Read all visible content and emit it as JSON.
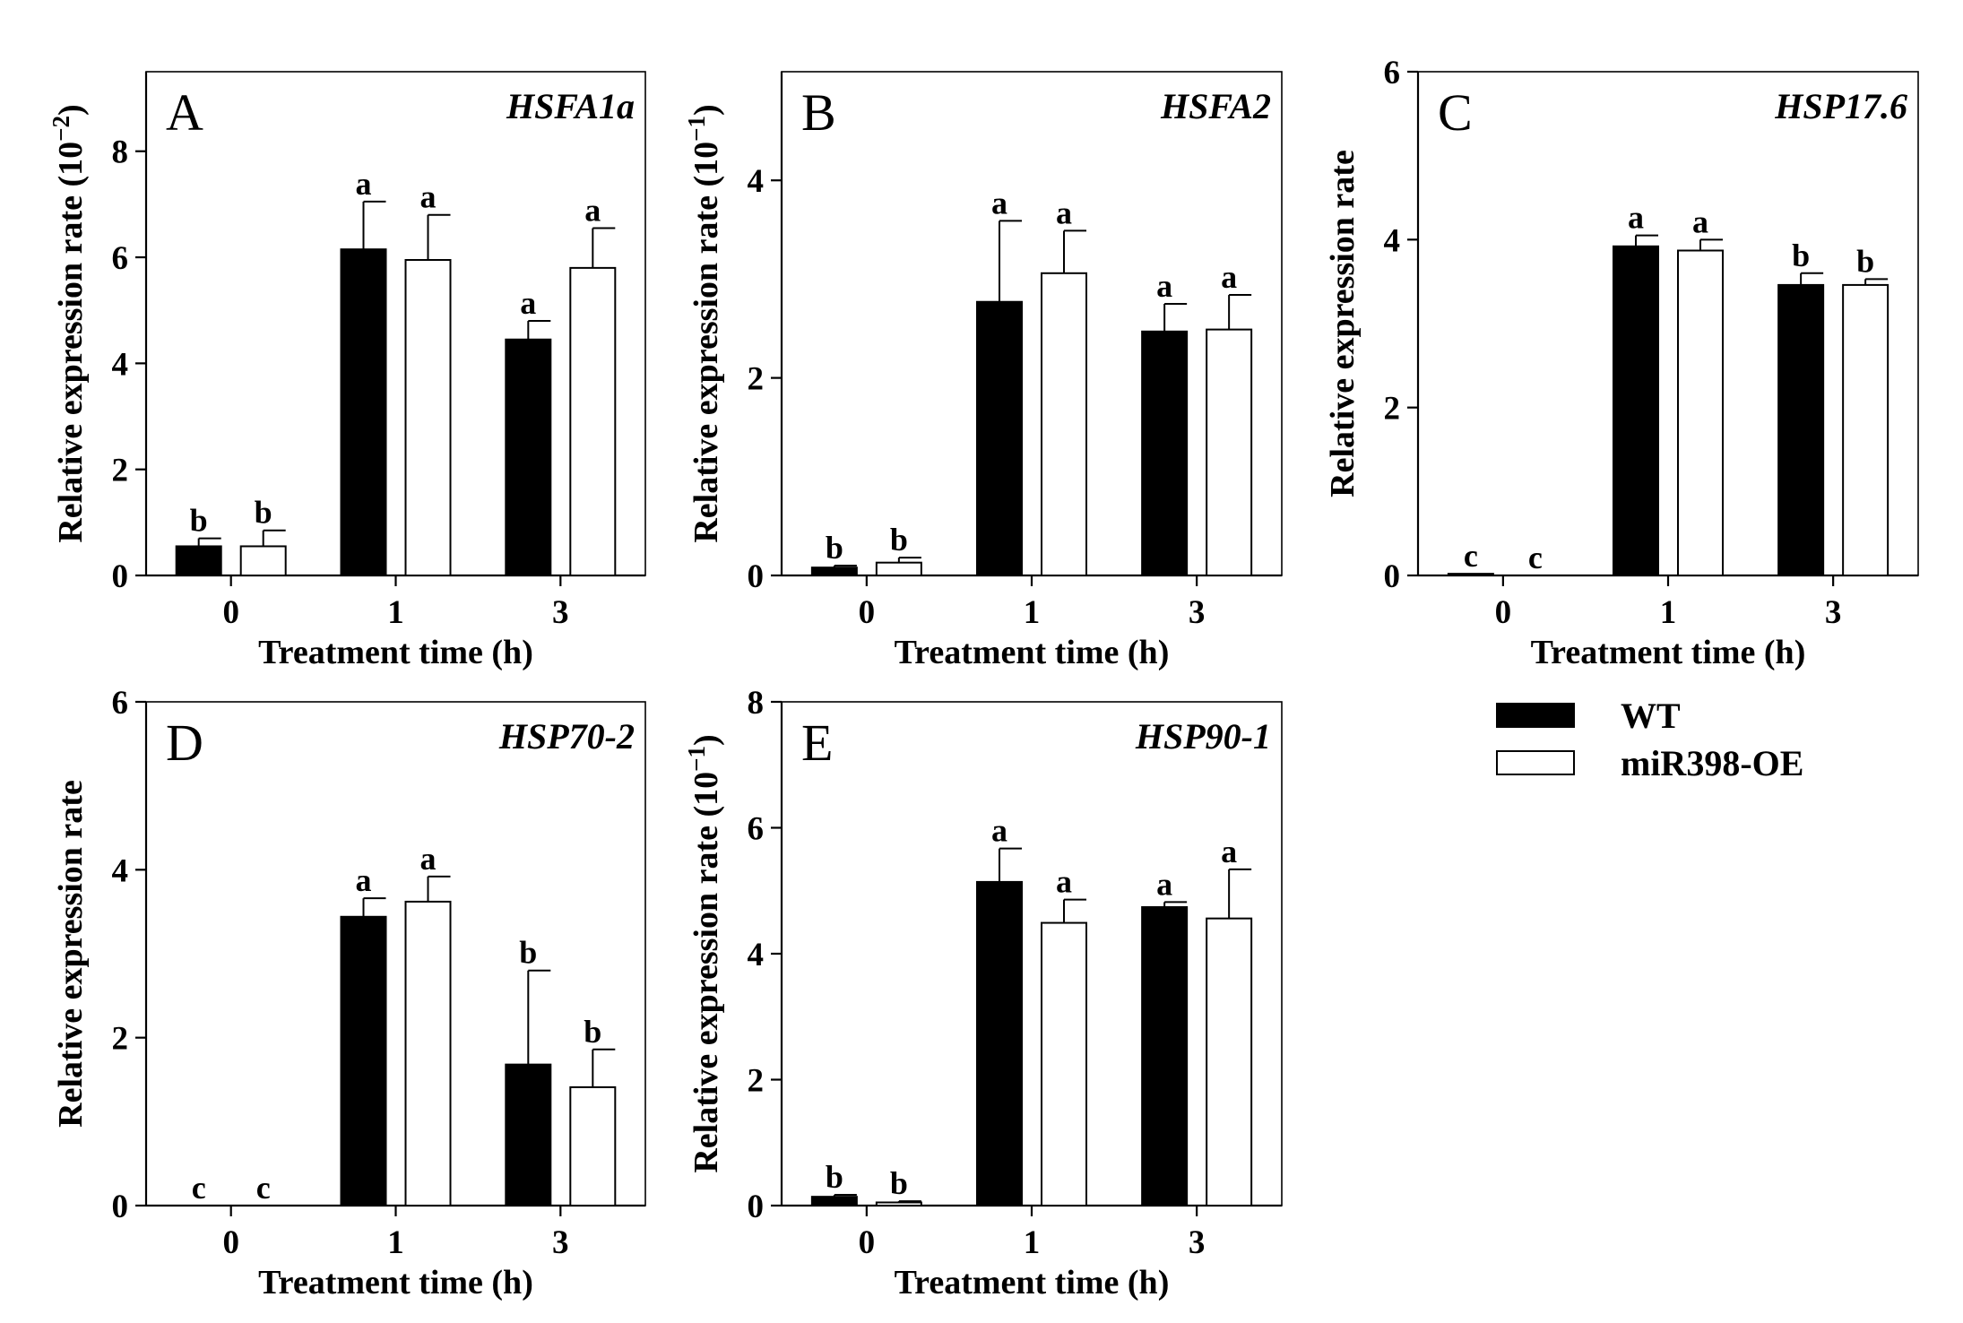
{
  "legend": {
    "items": [
      {
        "name": "WT",
        "color": "#000000"
      },
      {
        "name": "miR398-OE",
        "color": "#ffffff"
      }
    ]
  },
  "chart_data": [
    {
      "type": "bar",
      "panel": "A",
      "gene": "HSFA1a",
      "title": "HSFA1a",
      "xlabel": "Treatment time (h)",
      "ylabel_main": "Relative expression rate (10",
      "ylabel_exp": "−2",
      "ylabel_close": ")",
      "categories": [
        "0",
        "1",
        "3"
      ],
      "ylim": [
        0,
        9.5
      ],
      "yticks": [
        0,
        2,
        4,
        6,
        8
      ],
      "ytick_labels": [
        "0",
        "2",
        "4",
        "6",
        "8"
      ],
      "series": [
        {
          "name": "WT",
          "values": [
            0.55,
            6.15,
            4.45
          ],
          "errors": [
            0.15,
            0.9,
            0.35
          ],
          "sig": [
            "b",
            "a",
            "a"
          ]
        },
        {
          "name": "miR398-OE",
          "values": [
            0.55,
            5.95,
            5.8
          ],
          "errors": [
            0.3,
            0.85,
            0.75
          ],
          "sig": [
            "b",
            "a",
            "a"
          ]
        }
      ]
    },
    {
      "type": "bar",
      "panel": "B",
      "gene": "HSFA2",
      "title": "HSFA2",
      "xlabel": "Treatment time (h)",
      "ylabel_main": "Relative expression rate (10",
      "ylabel_exp": "−1",
      "ylabel_close": ")",
      "categories": [
        "0",
        "1",
        "3"
      ],
      "ylim": [
        0,
        5.1
      ],
      "yticks": [
        0,
        2,
        4
      ],
      "ytick_labels": [
        "0",
        "2",
        "4"
      ],
      "series": [
        {
          "name": "WT",
          "values": [
            0.08,
            2.77,
            2.47
          ],
          "errors": [
            0.02,
            0.82,
            0.28
          ],
          "sig": [
            "b",
            "a",
            "a"
          ]
        },
        {
          "name": "miR398-OE",
          "values": [
            0.13,
            3.06,
            2.49
          ],
          "errors": [
            0.05,
            0.43,
            0.35
          ],
          "sig": [
            "b",
            "a",
            "a"
          ]
        }
      ]
    },
    {
      "type": "bar",
      "panel": "C",
      "gene": "HSP17.6",
      "title": "HSP17.6",
      "xlabel": "Treatment time (h)",
      "ylabel_main": "Relative expression rate",
      "ylabel_exp": "",
      "ylabel_close": "",
      "categories": [
        "0",
        "1",
        "3"
      ],
      "ylim": [
        0,
        6
      ],
      "yticks": [
        0,
        2,
        4,
        6
      ],
      "ytick_labels": [
        "0",
        "2",
        "4",
        "6"
      ],
      "series": [
        {
          "name": "WT",
          "values": [
            0.02,
            3.92,
            3.46
          ],
          "errors": [
            0.0,
            0.13,
            0.14
          ],
          "sig": [
            "c",
            "a",
            "b"
          ]
        },
        {
          "name": "miR398-OE",
          "values": [
            0.0,
            3.87,
            3.46
          ],
          "errors": [
            0.0,
            0.13,
            0.07
          ],
          "sig": [
            "c",
            "a",
            "b"
          ]
        }
      ]
    },
    {
      "type": "bar",
      "panel": "D",
      "gene": "HSP70-2",
      "title": "HSP70-2",
      "xlabel": "Treatment time (h)",
      "ylabel_main": "Relative expression rate",
      "ylabel_exp": "",
      "ylabel_close": "",
      "categories": [
        "0",
        "1",
        "3"
      ],
      "ylim": [
        0,
        6
      ],
      "yticks": [
        0,
        2,
        4,
        6
      ],
      "ytick_labels": [
        "0",
        "2",
        "4",
        "6"
      ],
      "series": [
        {
          "name": "WT",
          "values": [
            0.0,
            3.44,
            1.68
          ],
          "errors": [
            0.0,
            0.22,
            1.12
          ],
          "sig": [
            "c",
            "a",
            "b"
          ]
        },
        {
          "name": "miR398-OE",
          "values": [
            0.0,
            3.62,
            1.41
          ],
          "errors": [
            0.0,
            0.3,
            0.45
          ],
          "sig": [
            "c",
            "a",
            "b"
          ]
        }
      ]
    },
    {
      "type": "bar",
      "panel": "E",
      "gene": "HSP90-1",
      "title": "HSP90-1",
      "xlabel": "Treatment time (h)",
      "ylabel_main": "Relative expression rate (10",
      "ylabel_exp": "−1",
      "ylabel_close": ")",
      "categories": [
        "0",
        "1",
        "3"
      ],
      "ylim": [
        0,
        8
      ],
      "yticks": [
        0,
        2,
        4,
        6,
        8
      ],
      "ytick_labels": [
        "0",
        "2",
        "4",
        "6",
        "8"
      ],
      "series": [
        {
          "name": "WT",
          "values": [
            0.14,
            5.14,
            4.74
          ],
          "errors": [
            0.03,
            0.53,
            0.08
          ],
          "sig": [
            "b",
            "a",
            "a"
          ]
        },
        {
          "name": "miR398-OE",
          "values": [
            0.05,
            4.49,
            4.56
          ],
          "errors": [
            0.02,
            0.37,
            0.78
          ],
          "sig": [
            "b",
            "a",
            "a"
          ]
        }
      ]
    }
  ]
}
